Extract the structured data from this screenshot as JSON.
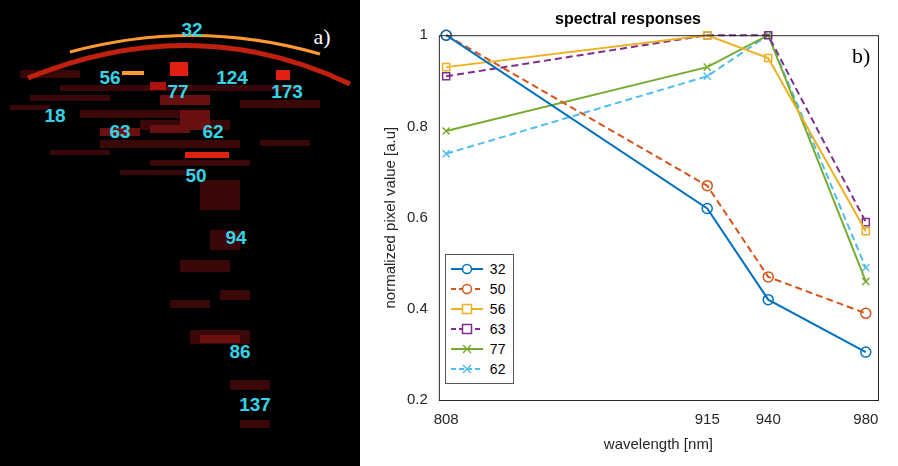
{
  "image_panel": {
    "panel_label": "a)",
    "labels": [
      "32",
      "56",
      "77",
      "124",
      "173",
      "18",
      "63",
      "62",
      "50",
      "94",
      "86",
      "137"
    ]
  },
  "chart_data": {
    "type": "line",
    "panel_label": "b)",
    "title": "spectral responses",
    "x_label": "wavelength [nm]",
    "y_label": "normalized pixel value [a.u]",
    "x": [
      808,
      915,
      940,
      980
    ],
    "xlim": [
      805,
      985
    ],
    "xticks": [
      808,
      915,
      940,
      980
    ],
    "ylim": [
      0.2,
      1
    ],
    "yticks": [
      0.2,
      0.4,
      0.6,
      0.8,
      1
    ],
    "grid": false,
    "legend": "lower left",
    "series": [
      {
        "name": "32",
        "color": "#0072BD",
        "marker": "circle",
        "line_style": "solid",
        "values": [
          1.0,
          0.62,
          0.42,
          0.305
        ]
      },
      {
        "name": "50",
        "color": "#D95319",
        "marker": "circle",
        "line_style": "dashed",
        "values": [
          1.0,
          0.67,
          0.47,
          0.39
        ]
      },
      {
        "name": "56",
        "color": "#EDB120",
        "marker": "square",
        "line_style": "solid",
        "values": [
          0.93,
          1.0,
          0.95,
          0.57
        ]
      },
      {
        "name": "63",
        "color": "#7E2F8E",
        "marker": "square",
        "line_style": "dashed",
        "values": [
          0.91,
          1.0,
          1.0,
          0.59
        ]
      },
      {
        "name": "77",
        "color": "#77AC30",
        "marker": "x",
        "line_style": "solid",
        "values": [
          0.79,
          0.93,
          1.0,
          0.46
        ]
      },
      {
        "name": "62",
        "color": "#4DBEEE",
        "marker": "x",
        "line_style": "dashed",
        "values": [
          0.74,
          0.91,
          1.0,
          0.49
        ]
      }
    ]
  }
}
